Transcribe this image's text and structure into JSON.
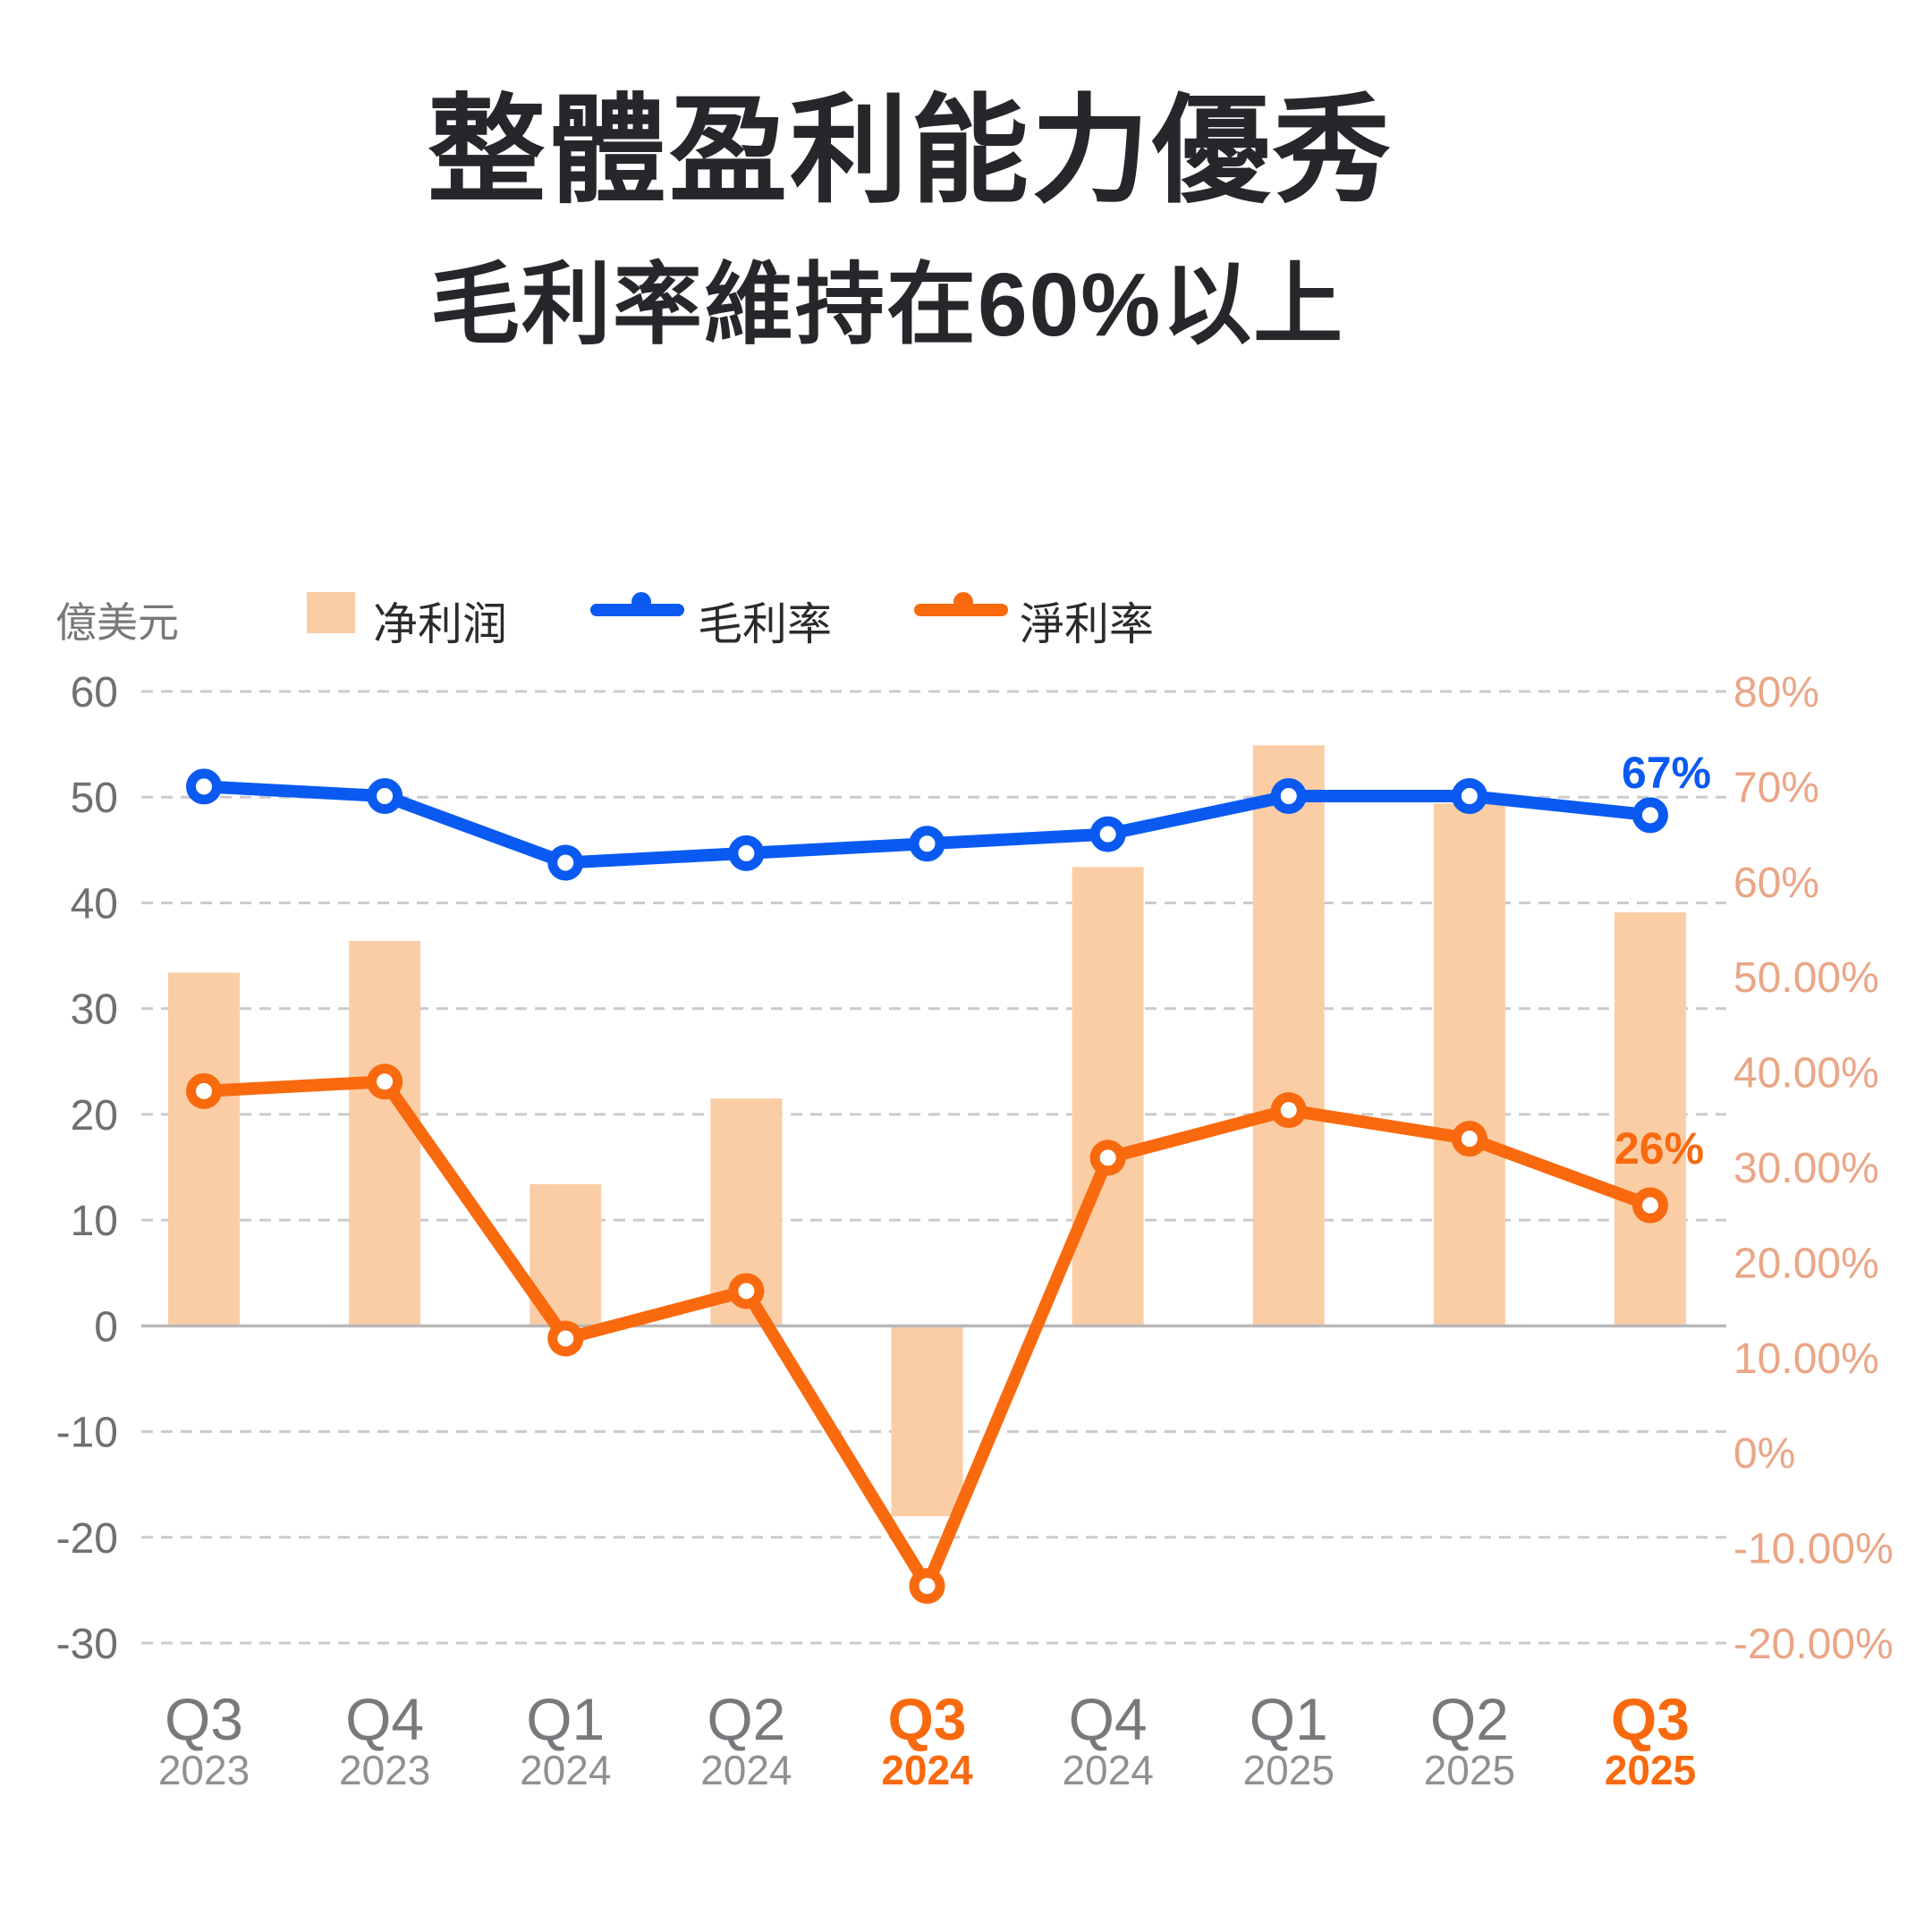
{
  "title": "整體盈利能力優秀",
  "subtitle": "毛利率維持在60%以上",
  "unit_label": "億美元",
  "legend": {
    "net_profit": "净利润",
    "gross_margin": "毛利率",
    "net_margin": "淨利率"
  },
  "colors": {
    "bar": "#FBCDA5",
    "blue": "#0A5AF2",
    "orange": "#F9690E",
    "right_axis_label": "#EAA686",
    "left_axis_label": "#6E7073",
    "grid": "#CBCBCB",
    "zero_line": "#B8B8B8",
    "x_quarter": "#77797C",
    "x_year": "#8E9094",
    "highlight": "#F9690E",
    "title": "#26272B"
  },
  "chart_data": {
    "type": "combo bar + line",
    "title": "整體盈利能力優秀",
    "subtitle": "毛利率維持在60%以上",
    "legend_position": "top",
    "grid": "horizontal dashed",
    "categories": [
      {
        "quarter": "Q3",
        "year": "2023",
        "highlight": false
      },
      {
        "quarter": "Q4",
        "year": "2023",
        "highlight": false
      },
      {
        "quarter": "Q1",
        "year": "2024",
        "highlight": false
      },
      {
        "quarter": "Q2",
        "year": "2024",
        "highlight": false
      },
      {
        "quarter": "Q3",
        "year": "2024",
        "highlight": true
      },
      {
        "quarter": "Q4",
        "year": "2024",
        "highlight": false
      },
      {
        "quarter": "Q1",
        "year": "2025",
        "highlight": false
      },
      {
        "quarter": "Q2",
        "year": "2025",
        "highlight": false
      },
      {
        "quarter": "Q3",
        "year": "2025",
        "highlight": true
      }
    ],
    "series": [
      {
        "name": "净利润",
        "type": "bar",
        "axis": "left",
        "unit": "億美元",
        "values": [
          33.4,
          36.4,
          13.4,
          21.5,
          -18,
          43.4,
          54.9,
          49.4,
          39.1
        ]
      },
      {
        "name": "毛利率",
        "type": "line",
        "axis": "right",
        "unit": "%",
        "values": [
          70,
          69,
          62,
          63,
          64,
          65,
          69,
          69,
          67
        ]
      },
      {
        "name": "淨利率",
        "type": "line",
        "axis": "right",
        "unit": "%",
        "values": [
          38,
          39,
          12,
          17,
          -14,
          31,
          36,
          33,
          26
        ]
      }
    ],
    "left_axis": {
      "title": "億美元",
      "range": [
        -30,
        60
      ],
      "ticks": [
        60,
        50,
        40,
        30,
        20,
        10,
        0,
        -10,
        -20,
        -30
      ],
      "tick_labels": [
        "60",
        "50",
        "40",
        "30",
        "20",
        "10",
        "0",
        "-10",
        "-20",
        "-30"
      ]
    },
    "right_axis": {
      "range": [
        -20,
        80
      ],
      "ticks": [
        80,
        70,
        60,
        50,
        40,
        30,
        20,
        10,
        0,
        -10,
        -20
      ],
      "tick_labels": [
        "80%",
        "70%",
        "60%",
        "50.00%",
        "40.00%",
        "30.00%",
        "20.00%",
        "10.00%",
        "0%",
        "-10.00%",
        "-20.00%"
      ]
    },
    "annotations": [
      {
        "series": "毛利率",
        "index": 8,
        "text": "67%"
      },
      {
        "series": "淨利率",
        "index": 8,
        "text": "26%"
      }
    ]
  }
}
